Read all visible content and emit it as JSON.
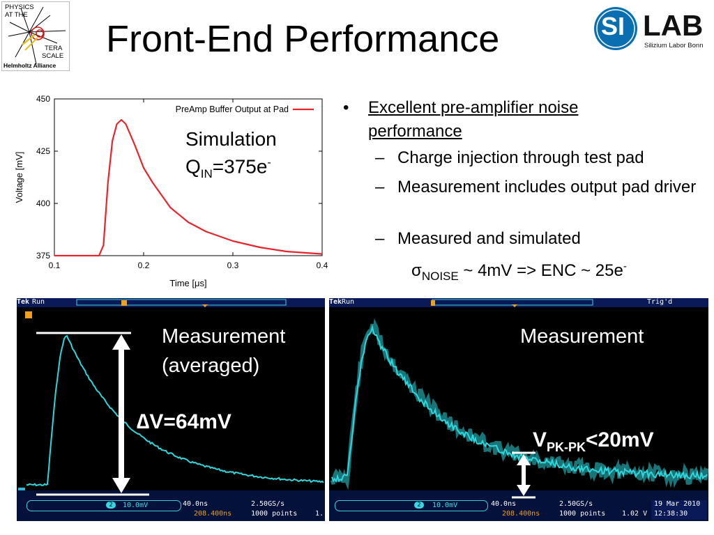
{
  "header": {
    "title": "Front-End Performance",
    "logo_left": {
      "lines": [
        "PHYSICS",
        "AT THE",
        "TERA",
        "SCALE",
        "Helmholtz Alliance"
      ]
    },
    "logo_right": {
      "si": "SI",
      "lab": "LAB",
      "tagline": "Silizium Labor Bonn",
      "color": "#0a6fb0"
    }
  },
  "simulation": {
    "label_line1": "Simulation",
    "label_q": "Q",
    "label_sub": "IN",
    "label_value": "=375e",
    "label_sup": "-"
  },
  "chart_data": {
    "type": "line",
    "title": "",
    "xlabel": "Time [μs]",
    "ylabel": "Voltage [mV]",
    "xlim": [
      0.1,
      0.4
    ],
    "ylim": [
      375,
      450
    ],
    "xticks": [
      "0.1",
      "0.2",
      "0.3",
      "0.4"
    ],
    "yticks": [
      "375",
      "400",
      "425",
      "450"
    ],
    "legend_position": "top-right",
    "series": [
      {
        "name": "PreAmp Buffer Output at Pad",
        "color": "#e8242a",
        "x": [
          0.1,
          0.15,
          0.155,
          0.16,
          0.165,
          0.17,
          0.175,
          0.18,
          0.19,
          0.2,
          0.21,
          0.22,
          0.23,
          0.25,
          0.27,
          0.3,
          0.33,
          0.36,
          0.4
        ],
        "y": [
          375.0,
          375.0,
          380,
          410,
          430,
          438,
          440,
          438,
          428,
          417,
          410,
          404,
          398,
          391,
          386.5,
          382,
          379,
          377,
          375.8
        ]
      }
    ]
  },
  "bullets": {
    "main": "Excellent pre-amplifier noise performance",
    "sub": [
      "Charge injection through test pad",
      "Measurement includes output pad driver",
      "Measured and simulated"
    ],
    "sigma_symbol": "σ",
    "sigma_sub": "NOISE",
    "sigma_text": " ~ 4mV => ENC ~ 25e",
    "sigma_sup": "-"
  },
  "scope_left": {
    "brand": "Tek",
    "status": "Run",
    "label_line1": "Measurement",
    "label_line2": "(averaged)",
    "delta_label": "∆V=64mV",
    "ch_number": "2",
    "ch_scale": "10.0mV",
    "timebase": "40.0ns",
    "sample_rate": "2.50GS/s",
    "trigger_pos": "208.400ns",
    "record": "1000 points",
    "trig_tail": "1."
  },
  "scope_right": {
    "brand": "Tek",
    "status": "Run",
    "trig_status": "Trig'd",
    "label": "Measurement",
    "vpp_main": "V",
    "vpp_sub": "PK-PK",
    "vpp_value": "<20mV",
    "ch_number": "2",
    "ch_scale": "10.0mV",
    "timebase": "40.0ns",
    "sample_rate": "2.50GS/s",
    "trigger_pos": "208.400ns",
    "record": "1000 points",
    "trig_level": "1.02 V",
    "date": "19 Mar 2010",
    "time": "12:38:30"
  },
  "colors": {
    "trace": "#2fd6dc",
    "sim": "#e8242a",
    "scope_bar": "#0a1a58"
  }
}
